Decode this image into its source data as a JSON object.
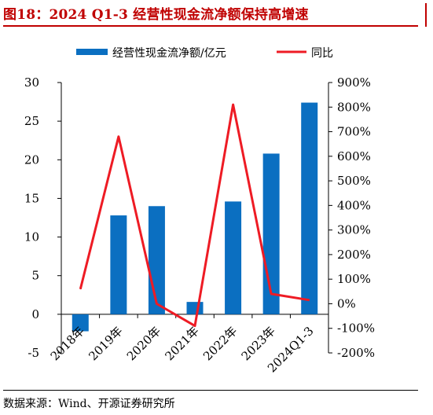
{
  "figure": {
    "title": "图18：2024 Q1-3 经营性现金流净额保持高增速",
    "source": "数据来源：Wind、开源证券研究所"
  },
  "colors": {
    "bar": "#0b6fc1",
    "line": "#ee1b24",
    "title": "#c00000"
  },
  "chart_data": {
    "type": "bar",
    "categories": [
      "2018年",
      "2019年",
      "2020年",
      "2021年",
      "2022年",
      "2023年",
      "2024Q1-3"
    ],
    "series": [
      {
        "name": "经营性现金流净额/亿元",
        "type": "bar",
        "axis": "left",
        "values": [
          -2.2,
          12.8,
          14.0,
          1.6,
          14.6,
          20.8,
          27.4
        ]
      },
      {
        "name": "同比",
        "type": "line",
        "axis": "right",
        "unit": "%",
        "values": [
          60,
          680,
          0,
          -90,
          810,
          40,
          15
        ]
      }
    ],
    "y_left": {
      "ylim": [
        -5,
        30
      ],
      "ticks": [
        -5,
        0,
        5,
        10,
        15,
        20,
        25,
        30
      ],
      "tick_labels": [
        "-5",
        "0",
        "5",
        "10",
        "15",
        "20",
        "25",
        "30"
      ]
    },
    "y_right": {
      "ylim": [
        -200,
        900
      ],
      "ticks": [
        -200,
        -100,
        0,
        100,
        200,
        300,
        400,
        500,
        600,
        700,
        800,
        900
      ],
      "tick_labels": [
        "-200%",
        "-100%",
        "0%",
        "100%",
        "200%",
        "300%",
        "400%",
        "500%",
        "600%",
        "700%",
        "800%",
        "900%"
      ]
    },
    "legend": {
      "position": "top",
      "items": [
        "经营性现金流净额/亿元",
        "同比"
      ]
    },
    "grid": false
  }
}
